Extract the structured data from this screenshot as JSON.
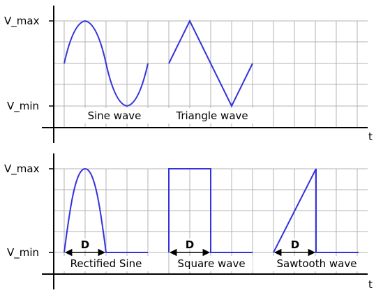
{
  "colors": {
    "wave": "#3333dd",
    "grid": "#b3b3b3",
    "axis": "#000000"
  },
  "panel_top": {
    "y_max_label": "V_max",
    "y_min_label": "V_min",
    "x_axis_label": "t",
    "waves": [
      {
        "label": "Sine wave"
      },
      {
        "label": "Triangle wave"
      }
    ]
  },
  "panel_bottom": {
    "y_max_label": "V_max",
    "y_min_label": "V_min",
    "x_axis_label": "t",
    "waves": [
      {
        "label": "Rectified Sine",
        "duration_label": "D"
      },
      {
        "label": "Square wave",
        "duration_label": "D"
      },
      {
        "label": "Sawtooth wave",
        "duration_label": "D"
      }
    ]
  }
}
